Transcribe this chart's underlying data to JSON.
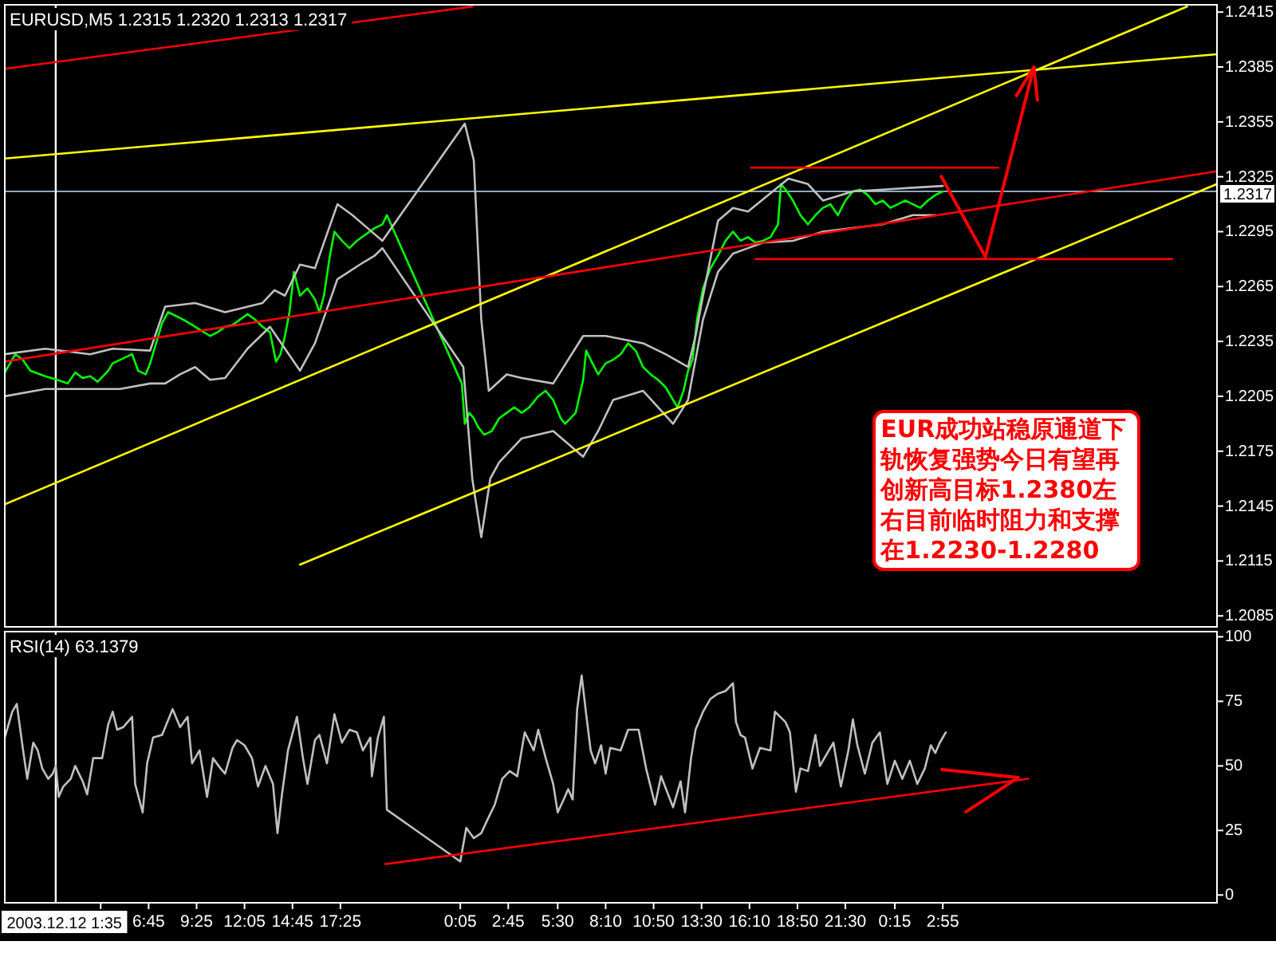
{
  "chart_data": [
    {
      "type": "line",
      "title": "EURUSD,M5 1.2315 1.2320 1.2313 1.2317",
      "xlim": [
        "2003-12-11T22:45",
        "2003-12-14T18:10"
      ],
      "ylim": [
        1.2079,
        1.2419
      ],
      "yticks": [
        1.2085,
        1.2115,
        1.2145,
        1.2175,
        1.2205,
        1.2235,
        1.2265,
        1.2295,
        1.2325,
        1.2355,
        1.2385,
        1.2415
      ],
      "tick_labels": "y",
      "series": [
        {
          "color": "#00ff00",
          "x": [
            "2003-12-11T22:45",
            "2003-12-11T23:20",
            "2003-12-11T23:45",
            "2003-12-12T00:10",
            "2003-12-12T01:00",
            "2003-12-12T01:40",
            "2003-12-12T02:15",
            "2003-12-12T02:40",
            "2003-12-12T03:05",
            "2003-12-12T03:30",
            "2003-12-12T03:55",
            "2003-12-12T04:30",
            "2003-12-12T04:45",
            "2003-12-12T05:10",
            "2003-12-12T05:50",
            "2003-12-12T06:10",
            "2003-12-12T06:35",
            "2003-12-12T06:50",
            "2003-12-12T07:10",
            "2003-12-12T07:30",
            "2003-12-12T07:50",
            "2003-12-12T08:15",
            "2003-12-12T08:40",
            "2003-12-12T09:10",
            "2003-12-12T09:40",
            "2003-12-12T10:10",
            "2003-12-12T10:35",
            "2003-12-12T11:00",
            "2003-12-12T11:25",
            "2003-12-12T11:50",
            "2003-12-12T12:15",
            "2003-12-12T12:40",
            "2003-12-12T13:05",
            "2003-12-12T13:30",
            "2003-12-12T13:50",
            "2003-12-12T14:05",
            "2003-12-12T14:20",
            "2003-12-12T14:35",
            "2003-12-12T14:50",
            "2003-12-12T15:10",
            "2003-12-12T15:35",
            "2003-12-12T16:00",
            "2003-12-12T16:15",
            "2003-12-12T16:30",
            "2003-12-12T16:50",
            "2003-12-12T17:05",
            "2003-12-12T17:30",
            "2003-12-12T17:55",
            "2003-12-12T18:20",
            "2003-12-12T18:45",
            "2003-12-12T19:20",
            "2003-12-12T19:45",
            "2003-12-12T20:00",
            "2003-12-13T00:10",
            "2003-12-13T00:20",
            "2003-12-13T00:35",
            "2003-12-13T00:50",
            "2003-12-13T01:05",
            "2003-12-13T01:25",
            "2003-12-13T01:50",
            "2003-12-13T02:15",
            "2003-12-13T02:40",
            "2003-12-13T03:05",
            "2003-12-13T03:30",
            "2003-12-13T03:55",
            "2003-12-13T04:25",
            "2003-12-13T04:50",
            "2003-12-13T05:15",
            "2003-12-13T05:40",
            "2003-12-13T05:55",
            "2003-12-13T06:30",
            "2003-12-13T06:55",
            "2003-12-13T07:05",
            "2003-12-13T07:20",
            "2003-12-13T07:45",
            "2003-12-13T08:10",
            "2003-12-13T08:35",
            "2003-12-13T09:00",
            "2003-12-13T09:25",
            "2003-12-13T09:50",
            "2003-12-13T10:15",
            "2003-12-13T10:40",
            "2003-12-13T11:05",
            "2003-12-13T11:30",
            "2003-12-13T11:55",
            "2003-12-13T12:10",
            "2003-12-13T12:30",
            "2003-12-13T12:45",
            "2003-12-13T13:00",
            "2003-12-13T13:15",
            "2003-12-13T13:35",
            "2003-12-13T14:00",
            "2003-12-13T14:25",
            "2003-12-13T14:50",
            "2003-12-13T15:15",
            "2003-12-13T15:40",
            "2003-12-13T16:05",
            "2003-12-13T16:30",
            "2003-12-13T16:55",
            "2003-12-13T17:20",
            "2003-12-13T17:45",
            "2003-12-13T17:55",
            "2003-12-13T18:15",
            "2003-12-13T18:35",
            "2003-12-13T19:00",
            "2003-12-13T19:25",
            "2003-12-13T19:50",
            "2003-12-13T20:15",
            "2003-12-13T20:40",
            "2003-12-13T21:05",
            "2003-12-13T21:30",
            "2003-12-13T21:55",
            "2003-12-13T22:20",
            "2003-12-13T22:45",
            "2003-12-13T23:10",
            "2003-12-13T23:35",
            "2003-12-14T00:00",
            "2003-12-14T00:25",
            "2003-12-14T00:50",
            "2003-12-14T01:15",
            "2003-12-14T01:40",
            "2003-12-14T02:05",
            "2003-12-14T02:30",
            "2003-12-14T02:55"
          ],
          "values": [
            1.2218,
            1.2228,
            1.2225,
            1.2219,
            1.2216,
            1.2214,
            1.2212,
            1.2218,
            1.2215,
            1.2216,
            1.2213,
            1.2219,
            1.2223,
            1.2225,
            1.2228,
            1.2219,
            1.2217,
            1.2223,
            1.2234,
            1.2245,
            1.2251,
            1.2249,
            1.2247,
            1.2244,
            1.2241,
            1.2238,
            1.224,
            1.2243,
            1.2244,
            1.2247,
            1.225,
            1.2247,
            1.2243,
            1.224,
            1.2224,
            1.2228,
            1.2238,
            1.2251,
            1.2273,
            1.226,
            1.2264,
            1.2258,
            1.2251,
            1.226,
            1.2282,
            1.2295,
            1.229,
            1.2286,
            1.229,
            1.2293,
            1.2297,
            1.2299,
            1.2304,
            1.2212,
            1.219,
            1.2196,
            1.2193,
            1.2188,
            1.2184,
            1.2186,
            1.2193,
            1.2196,
            1.2199,
            1.2196,
            1.2199,
            1.2205,
            1.2208,
            1.2203,
            1.2193,
            1.219,
            1.2196,
            1.2214,
            1.223,
            1.2225,
            1.2217,
            1.2223,
            1.2225,
            1.2228,
            1.2234,
            1.223,
            1.2221,
            1.2217,
            1.2214,
            1.221,
            1.2203,
            1.2199,
            1.2208,
            1.2219,
            1.2225,
            1.2247,
            1.2264,
            1.2275,
            1.2282,
            1.229,
            1.2295,
            1.229,
            1.2292,
            1.2289,
            1.229,
            1.2292,
            1.2299,
            1.2321,
            1.2317,
            1.2312,
            1.2304,
            1.2299,
            1.2304,
            1.2308,
            1.231,
            1.2304,
            1.2312,
            1.2317,
            1.2318,
            1.2315,
            1.231,
            1.2312,
            1.2308,
            1.231,
            1.2312,
            1.231,
            1.2308,
            1.2312,
            1.2315,
            1.2317
          ]
        },
        {
          "color": "#c0c0c0",
          "x": [
            "2003-12-11T22:45",
            "2003-12-12T01:00",
            "2003-12-12T03:30",
            "2003-12-12T04:45",
            "2003-12-12T06:50",
            "2003-12-12T07:40",
            "2003-12-12T09:20",
            "2003-12-12T11:00",
            "2003-12-12T13:05",
            "2003-12-12T13:45",
            "2003-12-12T14:20",
            "2003-12-12T15:10",
            "2003-12-12T16:00",
            "2003-12-12T17:15",
            "2003-12-12T18:05",
            "2003-12-12T18:55",
            "2003-12-12T19:45",
            "2003-12-13T00:20",
            "2003-12-13T00:50",
            "2003-12-13T01:15",
            "2003-12-13T01:40",
            "2003-12-13T02:40",
            "2003-12-13T03:30",
            "2003-12-13T05:15",
            "2003-12-13T06:55",
            "2003-12-13T08:10",
            "2003-12-13T10:15",
            "2003-12-13T11:30",
            "2003-12-13T12:45",
            "2003-12-13T13:10",
            "2003-12-13T13:35",
            "2003-12-13T14:25",
            "2003-12-13T15:15",
            "2003-12-13T16:05",
            "2003-12-13T18:20",
            "2003-12-13T19:25",
            "2003-12-13T20:15",
            "2003-12-13T21:55",
            "2003-12-13T23:35",
            "2003-12-14T01:15",
            "2003-12-14T02:55"
          ],
          "values": [
            1.2228,
            1.2231,
            1.2228,
            1.2231,
            1.223,
            1.2254,
            1.2256,
            1.2251,
            1.2256,
            1.2263,
            1.226,
            1.2277,
            1.2275,
            1.231,
            1.2304,
            1.2297,
            1.229,
            1.2354,
            1.2334,
            1.2247,
            1.2208,
            1.2217,
            1.2215,
            1.2212,
            1.2238,
            1.2238,
            1.2234,
            1.2228,
            1.2221,
            1.2238,
            1.226,
            1.2301,
            1.2308,
            1.2306,
            1.2324,
            1.2321,
            1.2312,
            1.2317,
            1.2318,
            1.2319,
            1.232
          ]
        },
        {
          "color": "#c0c0c0",
          "x": [
            "2003-12-11T22:45",
            "2003-12-12T01:00",
            "2003-12-12T03:30",
            "2003-12-12T05:10",
            "2003-12-12T06:50",
            "2003-12-12T07:40",
            "2003-12-12T08:30",
            "2003-12-12T09:20",
            "2003-12-12T10:10",
            "2003-12-12T11:00",
            "2003-12-12T12:15",
            "2003-12-12T13:30",
            "2003-12-12T15:10",
            "2003-12-12T16:00",
            "2003-12-12T17:15",
            "2003-12-12T18:30",
            "2003-12-12T19:20",
            "2003-12-12T19:45",
            "2003-12-13T00:15",
            "2003-12-13T00:45",
            "2003-12-13T01:15",
            "2003-12-13T01:45",
            "2003-12-13T02:15",
            "2003-12-13T03:30",
            "2003-12-13T05:15",
            "2003-12-13T06:55",
            "2003-12-13T07:45",
            "2003-12-13T08:35",
            "2003-12-13T10:15",
            "2003-12-13T11:55",
            "2003-12-13T12:45",
            "2003-12-13T13:35",
            "2003-12-13T14:25",
            "2003-12-13T15:15",
            "2003-12-13T16:05",
            "2003-12-13T16:55",
            "2003-12-13T18:35",
            "2003-12-13T20:15",
            "2003-12-13T21:55",
            "2003-12-13T23:35",
            "2003-12-14T01:15",
            "2003-12-14T02:30"
          ],
          "values": [
            1.2205,
            1.2209,
            1.2209,
            1.2209,
            1.2212,
            1.2212,
            1.2217,
            1.2221,
            1.2214,
            1.2215,
            1.2231,
            1.2243,
            1.2219,
            1.2234,
            1.2269,
            1.2277,
            1.2282,
            1.2286,
            1.2221,
            1.216,
            1.2128,
            1.216,
            1.2169,
            1.2182,
            1.2186,
            1.2172,
            1.2186,
            1.2203,
            1.2208,
            1.219,
            1.2203,
            1.2247,
            1.2273,
            1.2283,
            1.2286,
            1.2289,
            1.229,
            1.2295,
            1.2297,
            1.2299,
            1.2304,
            1.2304
          ]
        },
        {
          "color": "#ff0000",
          "x": [
            "2003-12-11T22:45",
            "2003-12-13T00:45"
          ],
          "values": [
            1.2384,
            1.2418
          ]
        },
        {
          "color": "#ffff00",
          "x": [
            "2003-12-11T22:45",
            "2003-12-14T18:10"
          ],
          "values": [
            1.2335,
            1.2392
          ]
        },
        {
          "color": "#ffff00",
          "x": [
            "2003-12-11T22:45",
            "2003-12-14T16:30"
          ],
          "values": [
            1.2146,
            1.2418
          ]
        },
        {
          "color": "#ffff00",
          "x": [
            "2003-12-12T15:10",
            "2003-12-14T18:10"
          ],
          "values": [
            1.2113,
            1.2321
          ]
        },
        {
          "color": "#ff0000",
          "x": [
            "2003-12-11T22:45",
            "2003-12-14T18:10"
          ],
          "values": [
            1.2224,
            1.2328
          ]
        },
        {
          "color": "#ff0000",
          "x": [
            "2003-12-13T16:15",
            "2003-12-14T06:00"
          ],
          "values": [
            1.233,
            1.233
          ]
        },
        {
          "color": "#ff0000",
          "x": [
            "2003-12-13T16:30",
            "2003-12-14T15:40"
          ],
          "values": [
            1.228,
            1.228
          ]
        }
      ],
      "ref_lines": [
        {
          "axis": "y",
          "value": 1.2317,
          "label": "1.2317",
          "color": "#8fa7bf"
        },
        {
          "axis": "x",
          "value": "2003-12-12T01:35",
          "color": "#ffffff"
        }
      ],
      "annotations": [
        "EUR成功站稳原通道下轨恢复强势今日有望再创新高目标1.2380左右目前临时阻力和支撑在1.2230-1.2280"
      ]
    },
    {
      "type": "line",
      "title": "RSI(14) 63.1379",
      "xlim": [
        "2003-12-11T22:45",
        "2003-12-14T18:10"
      ],
      "ylim": [
        -3,
        102
      ],
      "yticks": [
        0,
        25,
        50,
        75,
        100
      ],
      "xticks": [
        {
          "value": "2003-12-12T04:05",
          "label": null
        },
        {
          "value": "2003-12-12T06:45",
          "label": "6:45"
        },
        {
          "value": "2003-12-12T09:25",
          "label": "9:25"
        },
        {
          "value": "2003-12-12T12:05",
          "label": "12:05"
        },
        {
          "value": "2003-12-12T14:45",
          "label": "14:45"
        },
        {
          "value": "2003-12-12T17:25",
          "label": "17:25"
        },
        {
          "value": "2003-12-13T00:05",
          "label": "0:05"
        },
        {
          "value": "2003-12-13T02:45",
          "label": "2:45"
        },
        {
          "value": "2003-12-13T05:30",
          "label": "5:30"
        },
        {
          "value": "2003-12-13T08:10",
          "label": "8:10"
        },
        {
          "value": "2003-12-13T10:50",
          "label": "10:50"
        },
        {
          "value": "2003-12-13T13:30",
          "label": "13:30"
        },
        {
          "value": "2003-12-13T16:10",
          "label": "16:10"
        },
        {
          "value": "2003-12-13T18:50",
          "label": "18:50"
        },
        {
          "value": "2003-12-13T21:30",
          "label": "21:30"
        },
        {
          "value": "2003-12-14T00:15",
          "label": "0:15"
        },
        {
          "value": "2003-12-14T02:55",
          "label": "2:55"
        }
      ],
      "series": [
        {
          "color": "#c0c0c0",
          "x": [
            "2003-12-11T22:45",
            "2003-12-11T23:10",
            "2003-12-11T23:25",
            "2003-12-11T23:45",
            "2003-12-12T00:00",
            "2003-12-12T00:20",
            "2003-12-12T00:35",
            "2003-12-12T00:50",
            "2003-12-12T01:10",
            "2003-12-12T01:25",
            "2003-12-12T01:35",
            "2003-12-12T01:45",
            "2003-12-12T02:00",
            "2003-12-12T02:25",
            "2003-12-12T02:40",
            "2003-12-12T03:05",
            "2003-12-12T03:20",
            "2003-12-12T03:40",
            "2003-12-12T04:10",
            "2003-12-12T04:30",
            "2003-12-12T04:45",
            "2003-12-12T05:00",
            "2003-12-12T05:20",
            "2003-12-12T05:50",
            "2003-12-12T06:00",
            "2003-12-12T06:25",
            "2003-12-12T06:40",
            "2003-12-12T07:00",
            "2003-12-12T07:30",
            "2003-12-12T08:05",
            "2003-12-12T08:30",
            "2003-12-12T08:55",
            "2003-12-12T09:10",
            "2003-12-12T09:35",
            "2003-12-12T10:00",
            "2003-12-12T10:20",
            "2003-12-12T10:45",
            "2003-12-12T11:00",
            "2003-12-12T11:25",
            "2003-12-12T11:40",
            "2003-12-12T12:05",
            "2003-12-12T12:30",
            "2003-12-12T12:50",
            "2003-12-12T13:15",
            "2003-12-12T13:40",
            "2003-12-12T13:55",
            "2003-12-12T14:10",
            "2003-12-12T14:30",
            "2003-12-12T15:00",
            "2003-12-12T15:20",
            "2003-12-12T15:35",
            "2003-12-12T16:00",
            "2003-12-12T16:15",
            "2003-12-12T16:40",
            "2003-12-12T17:05",
            "2003-12-12T17:30",
            "2003-12-12T17:55",
            "2003-12-12T18:20",
            "2003-12-12T18:40",
            "2003-12-12T19:05",
            "2003-12-12T19:10",
            "2003-12-12T19:30",
            "2003-12-12T19:50",
            "2003-12-12T20:00",
            "2003-12-13T00:05",
            "2003-12-13T00:25",
            "2003-12-13T00:50",
            "2003-12-13T01:15",
            "2003-12-13T01:35",
            "2003-12-13T02:00",
            "2003-12-13T02:25",
            "2003-12-13T02:50",
            "2003-12-13T03:15",
            "2003-12-13T03:40",
            "2003-12-13T04:10",
            "2003-12-13T04:25",
            "2003-12-13T04:50",
            "2003-12-13T05:15",
            "2003-12-13T05:30",
            "2003-12-13T05:50",
            "2003-12-13T06:05",
            "2003-12-13T06:20",
            "2003-12-13T06:35",
            "2003-12-13T06:50",
            "2003-12-13T07:05",
            "2003-12-13T07:20",
            "2003-12-13T07:35",
            "2003-12-13T07:55",
            "2003-12-13T08:10",
            "2003-12-13T08:25",
            "2003-12-13T09:00",
            "2003-12-13T09:25",
            "2003-12-13T10:00",
            "2003-12-13T10:25",
            "2003-12-13T10:55",
            "2003-12-13T11:15",
            "2003-12-13T11:55",
            "2003-12-13T12:20",
            "2003-12-13T12:35",
            "2003-12-13T12:55",
            "2003-12-13T13:10",
            "2003-12-13T13:35",
            "2003-12-13T14:00",
            "2003-12-13T14:25",
            "2003-12-13T14:50",
            "2003-12-13T15:15",
            "2003-12-13T15:25",
            "2003-12-13T15:40",
            "2003-12-13T15:55",
            "2003-12-13T16:20",
            "2003-12-13T16:45",
            "2003-12-13T17:20",
            "2003-12-13T17:35",
            "2003-12-13T18:10",
            "2003-12-13T18:25",
            "2003-12-13T18:45",
            "2003-12-13T19:00",
            "2003-12-13T19:25",
            "2003-12-13T19:50",
            "2003-12-13T20:05",
            "2003-12-13T20:30",
            "2003-12-13T20:50",
            "2003-12-13T21:15",
            "2003-12-13T21:40",
            "2003-12-13T21:55",
            "2003-12-13T22:10",
            "2003-12-13T22:35",
            "2003-12-13T23:00",
            "2003-12-13T23:25",
            "2003-12-13T23:50",
            "2003-12-14T00:15",
            "2003-12-14T00:40",
            "2003-12-14T01:05",
            "2003-12-14T01:30",
            "2003-12-14T01:55",
            "2003-12-14T02:15",
            "2003-12-14T02:30",
            "2003-12-14T02:45",
            "2003-12-14T03:05"
          ],
          "values": [
            61,
            71,
            74,
            57,
            45,
            59,
            56,
            49,
            45,
            47,
            50,
            38,
            42,
            45,
            50,
            44,
            39,
            53,
            53,
            66,
            71,
            64,
            65,
            69,
            43,
            32,
            51,
            61,
            62,
            72,
            65,
            69,
            51,
            56,
            38,
            53,
            49,
            47,
            57,
            60,
            58,
            53,
            42,
            50,
            43,
            24,
            39,
            56,
            69,
            53,
            43,
            60,
            62,
            51,
            70,
            59,
            64,
            63,
            56,
            61,
            46,
            61,
            69,
            33,
            13,
            26,
            22,
            24,
            29,
            35,
            45,
            48,
            46,
            63,
            56,
            64,
            53,
            43,
            32,
            37,
            41,
            37,
            72,
            85,
            70,
            56,
            51,
            58,
            47,
            57,
            56,
            64,
            64,
            49,
            35,
            46,
            34,
            44,
            32,
            53,
            64,
            71,
            76,
            78,
            79,
            82,
            67,
            62,
            61,
            49,
            57,
            56,
            71,
            67,
            63,
            40,
            49,
            48,
            62,
            50,
            55,
            59,
            42,
            56,
            68,
            58,
            47,
            59,
            63,
            43,
            52,
            45,
            52,
            43,
            49,
            58,
            55,
            59,
            63
          ]
        },
        {
          "color": "#ff0000",
          "x": [
            "2003-12-12T19:55",
            "2003-12-14T07:40"
          ],
          "values": [
            12,
            45
          ]
        }
      ],
      "ref_lines": [
        {
          "axis": "x",
          "value": "2003-12-12T01:35",
          "label": "2003.12.12 1:35",
          "color": "#ffffff"
        }
      ]
    }
  ]
}
